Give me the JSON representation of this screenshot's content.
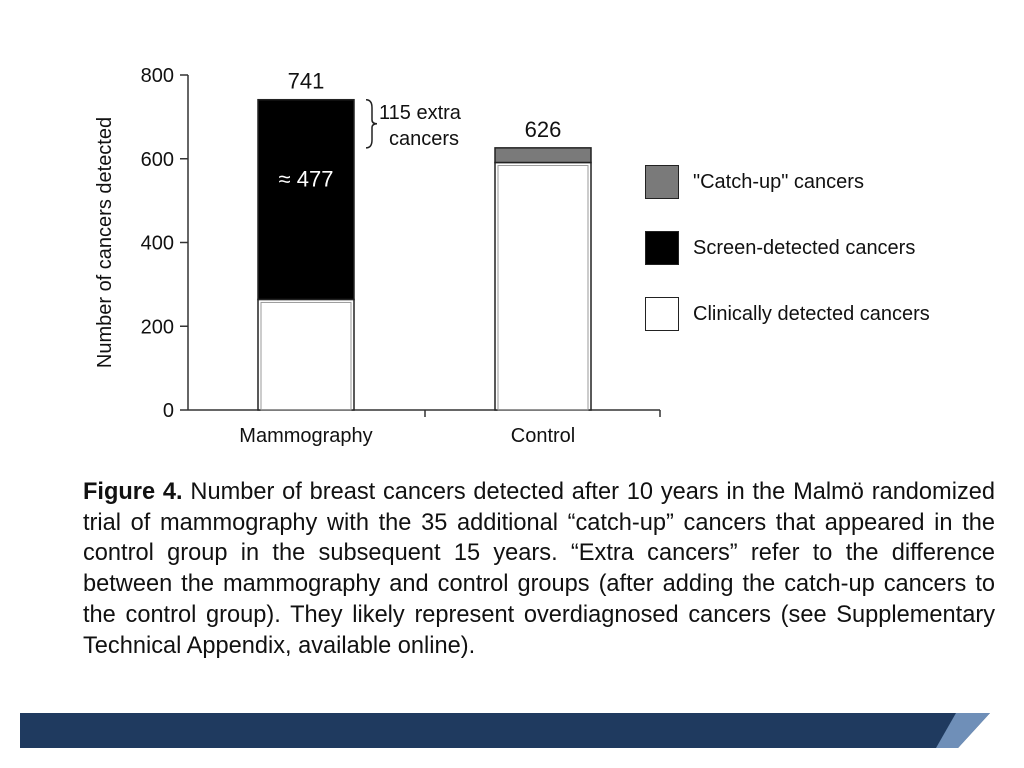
{
  "chart_data": {
    "type": "bar",
    "stacked": true,
    "categories": [
      "Mammography",
      "Control"
    ],
    "series": [
      {
        "name": "Clinically detected cancers",
        "values": [
          264,
          591
        ],
        "color": "#ffffff"
      },
      {
        "name": "Screen-detected cancers",
        "values": [
          477,
          0
        ],
        "color": "#000000"
      },
      {
        "name": "\"Catch-up\" cancers",
        "values": [
          0,
          35
        ],
        "color": "#7a7a7a"
      }
    ],
    "totals": [
      741,
      626
    ],
    "total_labels": [
      "741",
      "626"
    ],
    "segment_label": "≈ 477",
    "bracket_label": [
      "115 extra",
      "cancers"
    ],
    "ylabel": "Number of cancers detected",
    "ylim": [
      0,
      800
    ],
    "yticks": [
      0,
      200,
      400,
      600,
      800
    ],
    "legend_position": "right",
    "legend_order": [
      "\"Catch-up\" cancers",
      "Screen-detected cancers",
      "Clinically detected cancers"
    ],
    "grid": false
  },
  "caption": {
    "label": "Figure 4.",
    "text": "Number of breast cancers detected after 10 years in the Malmö randomized trial of mammography with the 35 additional “catch-up” cancers that appeared in the control group in the subsequent 15 years. “Extra cancers” refer to the difference between the mammography and control groups (after adding the catch-up cancers to the control group). They likely represent overdiagnosed cancers (see Supplementary Technical Appendix, available online)."
  },
  "footer": {
    "band_color": "#1f3a5f",
    "accent_color": "#6f8fb8"
  }
}
